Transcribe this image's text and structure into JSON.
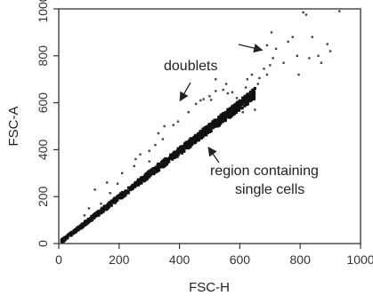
{
  "chart_data": {
    "type": "scatter",
    "title": "",
    "xlabel": "FSC-H",
    "ylabel": "FSC-A",
    "xlim": [
      0,
      1000
    ],
    "ylim": [
      0,
      1000
    ],
    "x_ticks": [
      "0",
      "200",
      "400",
      "600",
      "800",
      "1000"
    ],
    "y_ticks": [
      "0",
      "200",
      "400",
      "600",
      "800",
      "1000"
    ],
    "grid": false,
    "legend": "none",
    "colors": {
      "points": "#111111",
      "text": "#222222",
      "axes": "#333333"
    },
    "singlet_band": {
      "x_range": [
        10,
        650
      ],
      "slope": 0.98,
      "density": "dense"
    },
    "doublet_points": [
      [
        85,
        120
      ],
      [
        100,
        150
      ],
      [
        140,
        170
      ],
      [
        170,
        215
      ],
      [
        195,
        255
      ],
      [
        210,
        300
      ],
      [
        250,
        330
      ],
      [
        255,
        360
      ],
      [
        270,
        380
      ],
      [
        300,
        350
      ],
      [
        300,
        395
      ],
      [
        320,
        420
      ],
      [
        330,
        470
      ],
      [
        345,
        445
      ],
      [
        350,
        500
      ],
      [
        380,
        505
      ],
      [
        395,
        520
      ],
      [
        430,
        560
      ],
      [
        455,
        595
      ],
      [
        470,
        610
      ],
      [
        480,
        615
      ],
      [
        500,
        628
      ],
      [
        505,
        612
      ],
      [
        520,
        650
      ],
      [
        545,
        655
      ],
      [
        560,
        640
      ],
      [
        575,
        645
      ],
      [
        620,
        665
      ],
      [
        625,
        700
      ],
      [
        640,
        720
      ],
      [
        650,
        570
      ],
      [
        660,
        680
      ],
      [
        665,
        705
      ],
      [
        680,
        745
      ],
      [
        690,
        720
      ],
      [
        700,
        760
      ],
      [
        705,
        900
      ],
      [
        710,
        790
      ],
      [
        720,
        830
      ],
      [
        745,
        770
      ],
      [
        760,
        860
      ],
      [
        775,
        880
      ],
      [
        790,
        800
      ],
      [
        795,
        720
      ],
      [
        810,
        985
      ],
      [
        820,
        975
      ],
      [
        830,
        790
      ],
      [
        840,
        880
      ],
      [
        860,
        800
      ],
      [
        870,
        770
      ],
      [
        890,
        850
      ],
      [
        900,
        820
      ],
      [
        930,
        990
      ],
      [
        690,
        845
      ],
      [
        610,
        560
      ],
      [
        590,
        620
      ],
      [
        555,
        680
      ],
      [
        520,
        700
      ],
      [
        160,
        260
      ],
      [
        120,
        230
      ]
    ],
    "annotations": [
      {
        "text": "doublets",
        "x": 560,
        "y": 790
      },
      {
        "text_lines": [
          "region containing",
          "single cells"
        ],
        "x": 740,
        "y": 305
      }
    ]
  }
}
